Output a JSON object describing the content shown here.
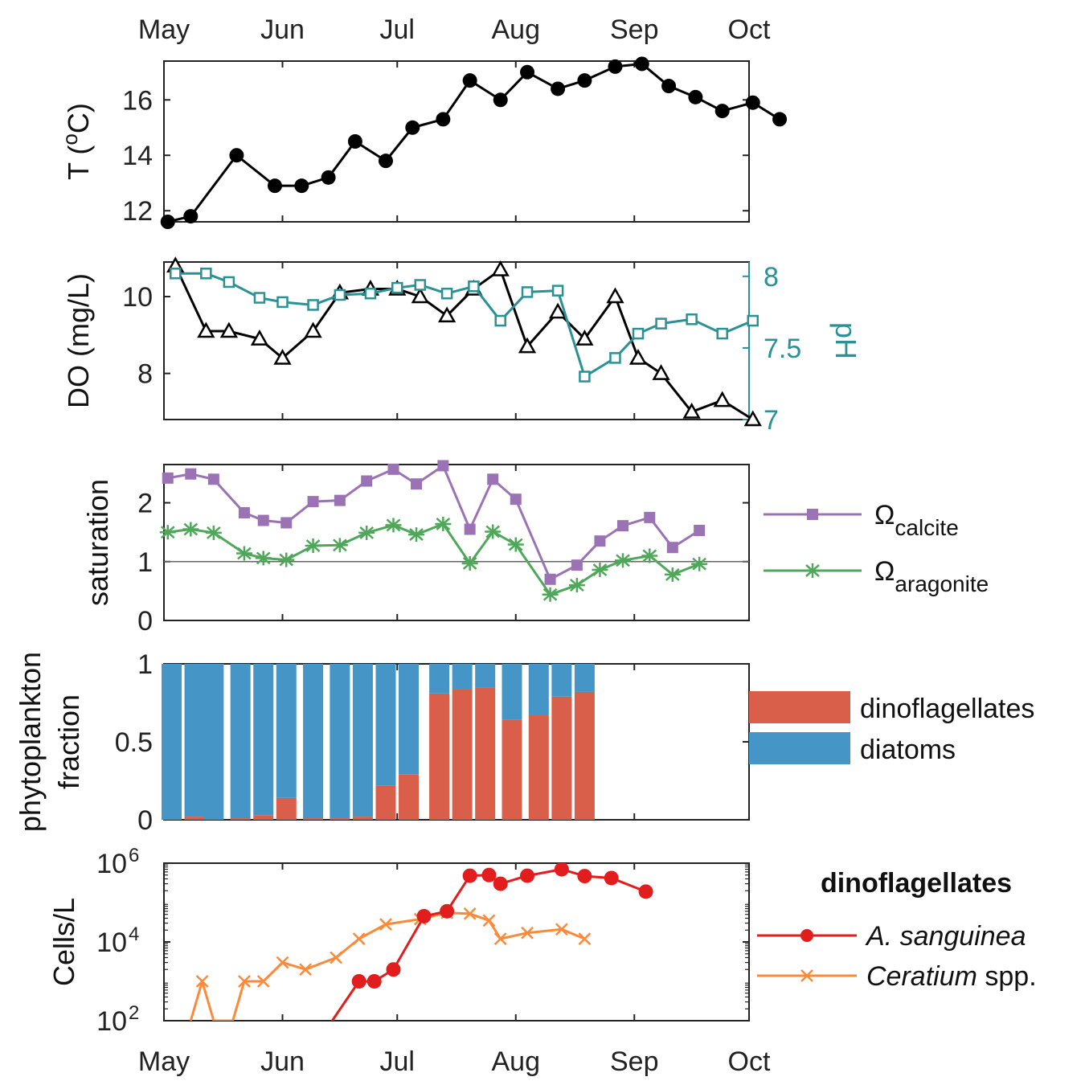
{
  "months": [
    "May",
    "Jun",
    "Jul",
    "Aug",
    "Sep",
    "Oct"
  ],
  "colors": {
    "temperature": "#000000",
    "do": "#000000",
    "ph": "#2a9195",
    "calcite": "#9b73b5",
    "aragonite": "#4fa85a",
    "dinoflagellates": "#d95f4b",
    "diatoms": "#4595c6",
    "a_sanguinea": "#e21d1d",
    "ceratium": "#fd8a3a"
  },
  "chart_data": [
    {
      "id": "temperature",
      "type": "line",
      "ylabel": "T (oC)",
      "ylabel_main": "T (",
      "ylabel_sup": "o",
      "ylabel_end": "C)",
      "yticks": [
        12,
        14,
        16
      ],
      "ylim": [
        11.6,
        17.4
      ],
      "x": [
        1,
        7,
        19,
        29,
        36,
        43,
        50,
        58,
        65,
        73,
        80,
        88,
        95,
        103,
        110,
        118,
        125,
        132,
        139,
        146,
        154,
        161,
        169
      ],
      "series": [
        {
          "name": "T",
          "marker": "filled-circle",
          "values": [
            11.6,
            11.8,
            14.0,
            12.9,
            12.9,
            13.2,
            14.5,
            13.8,
            15.0,
            15.3,
            16.7,
            16.0,
            17.0,
            16.4,
            16.7,
            17.2,
            17.3,
            16.5,
            16.1,
            15.6,
            15.9,
            15.3,
            null
          ]
        }
      ]
    },
    {
      "id": "do_ph",
      "type": "line",
      "ylabel": "DO (mg/L)",
      "y2label": "pH",
      "yticks": [
        8,
        10
      ],
      "ylim": [
        6.8,
        10.9
      ],
      "y2ticks": [
        7,
        7.5,
        8
      ],
      "y2lim": [
        7.0,
        8.1
      ],
      "x": [
        3,
        11,
        17,
        25,
        31,
        39,
        46,
        54,
        61,
        67,
        74,
        81,
        88,
        95,
        103,
        110,
        118,
        124,
        130,
        138,
        146,
        154,
        159,
        167
      ],
      "series": [
        {
          "name": "DO",
          "marker": "open-triangle",
          "axis": "left",
          "x": [
            3,
            11,
            17,
            25,
            31,
            39,
            46,
            54,
            61,
            67,
            74,
            81,
            88,
            95,
            103,
            110,
            118,
            124,
            130,
            138,
            146,
            154,
            167
          ],
          "values": [
            10.8,
            9.1,
            9.1,
            8.9,
            8.4,
            9.1,
            10.1,
            10.2,
            10.2,
            10.0,
            9.5,
            10.2,
            10.7,
            8.7,
            9.6,
            8.9,
            10.0,
            8.4,
            8.0,
            7.0,
            7.3,
            6.8,
            null
          ]
        },
        {
          "name": "pH",
          "marker": "open-square",
          "axis": "right",
          "x": [
            3,
            11,
            17,
            25,
            31,
            39,
            46,
            54,
            61,
            67,
            74,
            81,
            88,
            95,
            103,
            110,
            118,
            124,
            130,
            138,
            146,
            154,
            159,
            167
          ],
          "values": [
            8.02,
            8.02,
            7.96,
            7.85,
            7.82,
            7.8,
            7.87,
            7.88,
            7.92,
            7.94,
            7.88,
            7.93,
            7.69,
            7.89,
            7.9,
            7.3,
            7.43,
            7.6,
            7.67,
            7.7,
            7.6,
            7.69,
            null,
            null
          ]
        }
      ]
    },
    {
      "id": "saturation",
      "type": "line",
      "ylabel": "saturation",
      "yticks": [
        0,
        1,
        2
      ],
      "ylim": [
        0,
        2.65
      ],
      "reference_line": 1,
      "x": [
        1,
        7,
        13,
        21,
        26,
        32,
        39,
        46,
        53,
        60,
        66,
        73,
        80,
        86,
        92,
        101,
        108,
        114,
        120,
        127,
        133,
        140,
        146,
        152,
        156
      ],
      "series": [
        {
          "name": "calcite",
          "marker": "filled-square",
          "values": [
            2.42,
            2.49,
            2.4,
            1.83,
            1.7,
            1.66,
            2.02,
            2.04,
            2.37,
            2.57,
            2.32,
            2.63,
            1.55,
            2.4,
            2.06,
            0.7,
            0.94,
            1.35,
            1.61,
            1.75,
            1.24,
            1.53,
            null,
            null,
            null
          ]
        },
        {
          "name": "aragonite",
          "marker": "asterisk",
          "values": [
            1.5,
            1.55,
            1.49,
            1.14,
            1.06,
            1.03,
            1.27,
            1.28,
            1.49,
            1.62,
            1.46,
            1.64,
            0.97,
            1.51,
            1.29,
            0.44,
            0.6,
            0.86,
            1.02,
            1.1,
            0.78,
            0.96,
            null,
            null,
            null
          ]
        }
      ]
    },
    {
      "id": "phytoplankton_fraction",
      "type": "bar",
      "ylabel": "phytoplankton fraction",
      "ylabel_line1": "phytoplankton",
      "ylabel_line2": "fraction",
      "yticks": [
        0,
        0.5,
        1
      ],
      "ylim": [
        0,
        1
      ],
      "x": [
        2,
        8,
        13,
        20,
        26,
        32,
        39,
        46,
        52,
        58,
        64,
        72,
        78,
        84,
        91,
        98,
        104,
        110,
        116
      ],
      "series": [
        {
          "name": "dinoflagellates",
          "values": [
            0.0,
            0.02,
            0.0,
            0.01,
            0.03,
            0.14,
            0.01,
            0.01,
            0.02,
            0.22,
            0.29,
            0.81,
            0.84,
            0.85,
            0.64,
            0.67,
            0.79,
            0.82,
            null
          ]
        },
        {
          "name": "diatoms",
          "values": [
            1.0,
            0.98,
            1.0,
            0.99,
            0.97,
            0.86,
            0.99,
            0.99,
            0.98,
            0.78,
            0.71,
            0.19,
            0.16,
            0.15,
            0.36,
            0.33,
            0.21,
            0.18,
            null
          ]
        }
      ]
    },
    {
      "id": "cells",
      "type": "line",
      "ylabel": "Cells/L",
      "yscale": "log",
      "ylim": [
        100,
        1000000
      ],
      "yticks": [
        100,
        10000,
        1000000
      ],
      "ytick_base": "10",
      "ytick_exponents": [
        "2",
        "4",
        "6"
      ],
      "legend_title": "dinoflagellates",
      "series": [
        {
          "name": "A. sanguinea",
          "name_italic": "A. sanguinea",
          "name_rest": "",
          "marker": "filled-circle",
          "x": [
            39,
            44,
            51,
            55,
            60,
            68,
            74,
            80,
            85,
            88,
            95,
            104,
            110,
            117,
            126,
            135,
            141,
            148,
            157
          ],
          "values": [
            1,
            100,
            1000,
            1000,
            2000,
            45000,
            60000,
            480000,
            500000,
            300000,
            480000,
            700000,
            470000,
            420000,
            190000,
            null,
            null,
            null,
            null
          ]
        },
        {
          "name": "Ceratium spp.",
          "name_italic": "Ceratium",
          "name_rest": " spp.",
          "marker": "cross",
          "x": [
            7,
            10,
            13,
            18,
            21,
            26,
            31,
            37,
            45,
            51,
            58,
            67,
            74,
            80,
            85,
            88,
            95,
            104,
            110,
            117
          ],
          "values": [
            100,
            1000,
            100,
            100,
            1000,
            1000,
            3000,
            2000,
            4000,
            12000,
            28000,
            38000,
            55000,
            52000,
            35000,
            12000,
            17000,
            21000,
            12000,
            null
          ]
        }
      ]
    }
  ]
}
